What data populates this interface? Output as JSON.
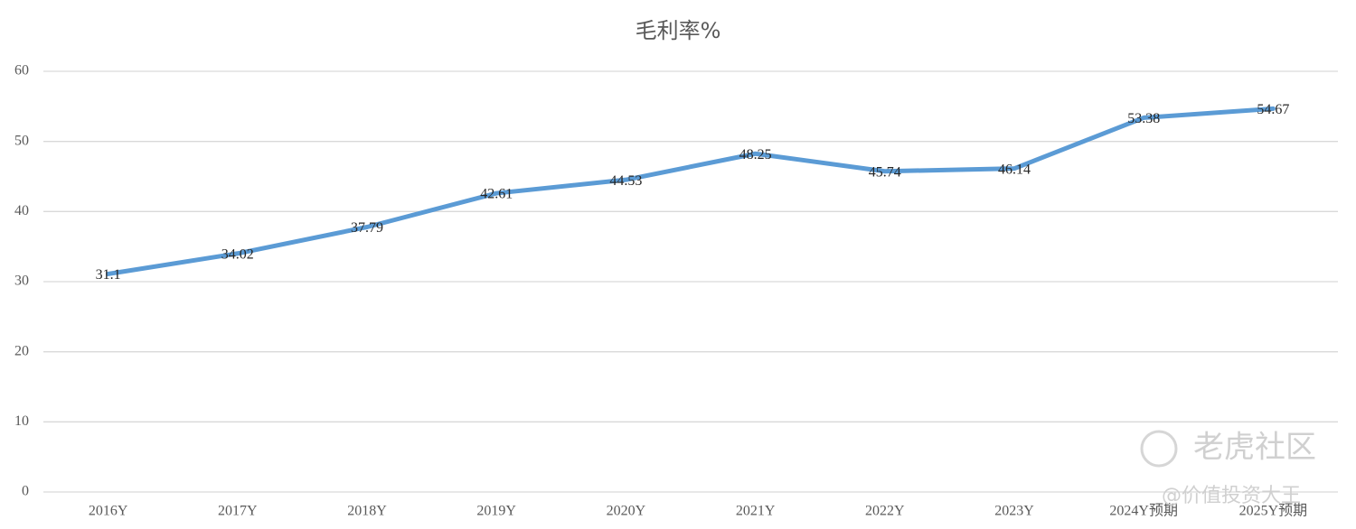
{
  "chart_data": {
    "type": "line",
    "title": "毛利率%",
    "categories": [
      "2016Y",
      "2017Y",
      "2018Y",
      "2019Y",
      "2020Y",
      "2021Y",
      "2022Y",
      "2023Y",
      "2024Y预期",
      "2025Y预期"
    ],
    "series": [
      {
        "name": "毛利率%",
        "color": "#5b9bd5",
        "values": [
          31.1,
          34.02,
          37.79,
          42.61,
          44.53,
          48.25,
          45.74,
          46.14,
          53.38,
          54.67
        ]
      }
    ],
    "ylim": [
      0,
      60
    ],
    "yticks": [
      0,
      10,
      20,
      30,
      40,
      50,
      60
    ],
    "grid": true,
    "watermark": [
      "老虎社区",
      "@价值投资大王"
    ]
  }
}
